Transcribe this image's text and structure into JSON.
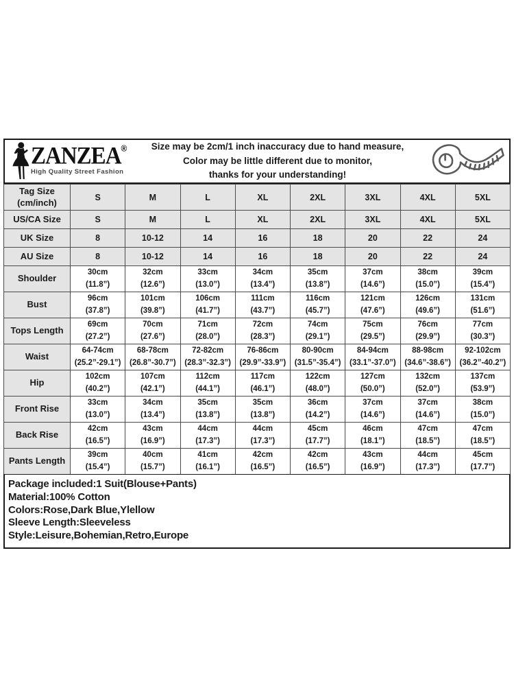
{
  "brand": {
    "name": "ZANZEA",
    "registered_mark": "®",
    "tagline": "High Quality Street Fashion"
  },
  "header": {
    "disclaimer_lines": [
      "Size may be 2cm/1 inch inaccuracy due to hand measure,",
      "Color may be little different due to monitor,",
      "thanks for your understanding!"
    ]
  },
  "icons": {
    "logo_figure": "woman-silhouette-icon",
    "tape": "measuring-tape-icon"
  },
  "colors": {
    "shaded_cell": "#e4e4e4",
    "border": "#4a4a4a",
    "text": "#1a1a1a"
  },
  "size_table": {
    "corner_label": "Tag Size\n(cm/inch)",
    "columns": [
      "S",
      "M",
      "L",
      "XL",
      "2XL",
      "3XL",
      "4XL",
      "5XL"
    ],
    "rows": [
      {
        "label": "Tag Size\n(cm/inch)",
        "type": "size",
        "tall": true,
        "values": [
          "S",
          "M",
          "L",
          "XL",
          "2XL",
          "3XL",
          "4XL",
          "5XL"
        ]
      },
      {
        "label": "US/CA Size",
        "type": "size",
        "values": [
          "S",
          "M",
          "L",
          "XL",
          "2XL",
          "3XL",
          "4XL",
          "5XL"
        ]
      },
      {
        "label": "UK Size",
        "type": "size",
        "values": [
          "8",
          "10-12",
          "14",
          "16",
          "18",
          "20",
          "22",
          "24"
        ]
      },
      {
        "label": "AU Size",
        "type": "size",
        "values": [
          "8",
          "10-12",
          "14",
          "16",
          "18",
          "20",
          "22",
          "24"
        ]
      },
      {
        "label": "Shoulder",
        "type": "measure",
        "values": [
          {
            "cm": "30cm",
            "inch": "(11.8”)"
          },
          {
            "cm": "32cm",
            "inch": "(12.6”)"
          },
          {
            "cm": "33cm",
            "inch": "(13.0”)"
          },
          {
            "cm": "34cm",
            "inch": "(13.4”)"
          },
          {
            "cm": "35cm",
            "inch": "(13.8”)"
          },
          {
            "cm": "37cm",
            "inch": "(14.6”)"
          },
          {
            "cm": "38cm",
            "inch": "(15.0”)"
          },
          {
            "cm": "39cm",
            "inch": "(15.4”)"
          }
        ]
      },
      {
        "label": "Bust",
        "type": "measure",
        "values": [
          {
            "cm": "96cm",
            "inch": "(37.8”)"
          },
          {
            "cm": "101cm",
            "inch": "(39.8”)"
          },
          {
            "cm": "106cm",
            "inch": "(41.7”)"
          },
          {
            "cm": "111cm",
            "inch": "(43.7”)"
          },
          {
            "cm": "116cm",
            "inch": "(45.7”)"
          },
          {
            "cm": "121cm",
            "inch": "(47.6”)"
          },
          {
            "cm": "126cm",
            "inch": "(49.6”)"
          },
          {
            "cm": "131cm",
            "inch": "(51.6”)"
          }
        ]
      },
      {
        "label": "Tops Length",
        "type": "measure",
        "values": [
          {
            "cm": "69cm",
            "inch": "(27.2”)"
          },
          {
            "cm": "70cm",
            "inch": "(27.6”)"
          },
          {
            "cm": "71cm",
            "inch": "(28.0”)"
          },
          {
            "cm": "72cm",
            "inch": "(28.3”)"
          },
          {
            "cm": "74cm",
            "inch": "(29.1”)"
          },
          {
            "cm": "75cm",
            "inch": "(29.5”)"
          },
          {
            "cm": "76cm",
            "inch": "(29.9”)"
          },
          {
            "cm": "77cm",
            "inch": "(30.3”)"
          }
        ]
      },
      {
        "label": "Waist",
        "type": "measure",
        "values": [
          {
            "cm": "64-74cm",
            "inch": "(25.2”-29.1”)"
          },
          {
            "cm": "68-78cm",
            "inch": "(26.8”-30.7”)"
          },
          {
            "cm": "72-82cm",
            "inch": "(28.3”-32.3”)"
          },
          {
            "cm": "76-86cm",
            "inch": "(29.9”-33.9”)"
          },
          {
            "cm": "80-90cm",
            "inch": "(31.5”-35.4”)"
          },
          {
            "cm": "84-94cm",
            "inch": "(33.1”-37.0”)"
          },
          {
            "cm": "88-98cm",
            "inch": "(34.6”-38.6”)"
          },
          {
            "cm": "92-102cm",
            "inch": "(36.2”-40.2”)"
          }
        ]
      },
      {
        "label": "Hip",
        "type": "measure",
        "values": [
          {
            "cm": "102cm",
            "inch": "(40.2”)"
          },
          {
            "cm": "107cm",
            "inch": "(42.1”)"
          },
          {
            "cm": "112cm",
            "inch": "(44.1”)"
          },
          {
            "cm": "117cm",
            "inch": "(46.1”)"
          },
          {
            "cm": "122cm",
            "inch": "(48.0”)"
          },
          {
            "cm": "127cm",
            "inch": "(50.0”)"
          },
          {
            "cm": "132cm",
            "inch": "(52.0”)"
          },
          {
            "cm": "137cm",
            "inch": "(53.9”)"
          }
        ]
      },
      {
        "label": "Front Rise",
        "type": "measure",
        "values": [
          {
            "cm": "33cm",
            "inch": "(13.0”)"
          },
          {
            "cm": "34cm",
            "inch": "(13.4”)"
          },
          {
            "cm": "35cm",
            "inch": "(13.8”)"
          },
          {
            "cm": "35cm",
            "inch": "(13.8”)"
          },
          {
            "cm": "36cm",
            "inch": "(14.2”)"
          },
          {
            "cm": "37cm",
            "inch": "(14.6”)"
          },
          {
            "cm": "37cm",
            "inch": "(14.6”)"
          },
          {
            "cm": "38cm",
            "inch": "(15.0”)"
          }
        ]
      },
      {
        "label": "Back Rise",
        "type": "measure",
        "values": [
          {
            "cm": "42cm",
            "inch": "(16.5”)"
          },
          {
            "cm": "43cm",
            "inch": "(16.9”)"
          },
          {
            "cm": "44cm",
            "inch": "(17.3”)"
          },
          {
            "cm": "44cm",
            "inch": "(17.3”)"
          },
          {
            "cm": "45cm",
            "inch": "(17.7”)"
          },
          {
            "cm": "46cm",
            "inch": "(18.1”)"
          },
          {
            "cm": "47cm",
            "inch": "(18.5”)"
          },
          {
            "cm": "47cm",
            "inch": "(18.5”)"
          }
        ]
      },
      {
        "label": "Pants Length",
        "type": "measure",
        "values": [
          {
            "cm": "39cm",
            "inch": "(15.4”)"
          },
          {
            "cm": "40cm",
            "inch": "(15.7”)"
          },
          {
            "cm": "41cm",
            "inch": "(16.1”)"
          },
          {
            "cm": "42cm",
            "inch": "(16.5”)"
          },
          {
            "cm": "42cm",
            "inch": "(16.5”)"
          },
          {
            "cm": "43cm",
            "inch": "(16.9”)"
          },
          {
            "cm": "44cm",
            "inch": "(17.3”)"
          },
          {
            "cm": "45cm",
            "inch": "(17.7”)"
          }
        ]
      }
    ]
  },
  "footer": {
    "lines": [
      "Package included:1 Suit(Blouse+Pants)",
      "Material:100% Cotton",
      "Colors:Rose,Dark Blue,Ylellow",
      "Sleeve Length:Sleeveless",
      "Style:Leisure,Bohemian,Retro,Europe"
    ]
  }
}
